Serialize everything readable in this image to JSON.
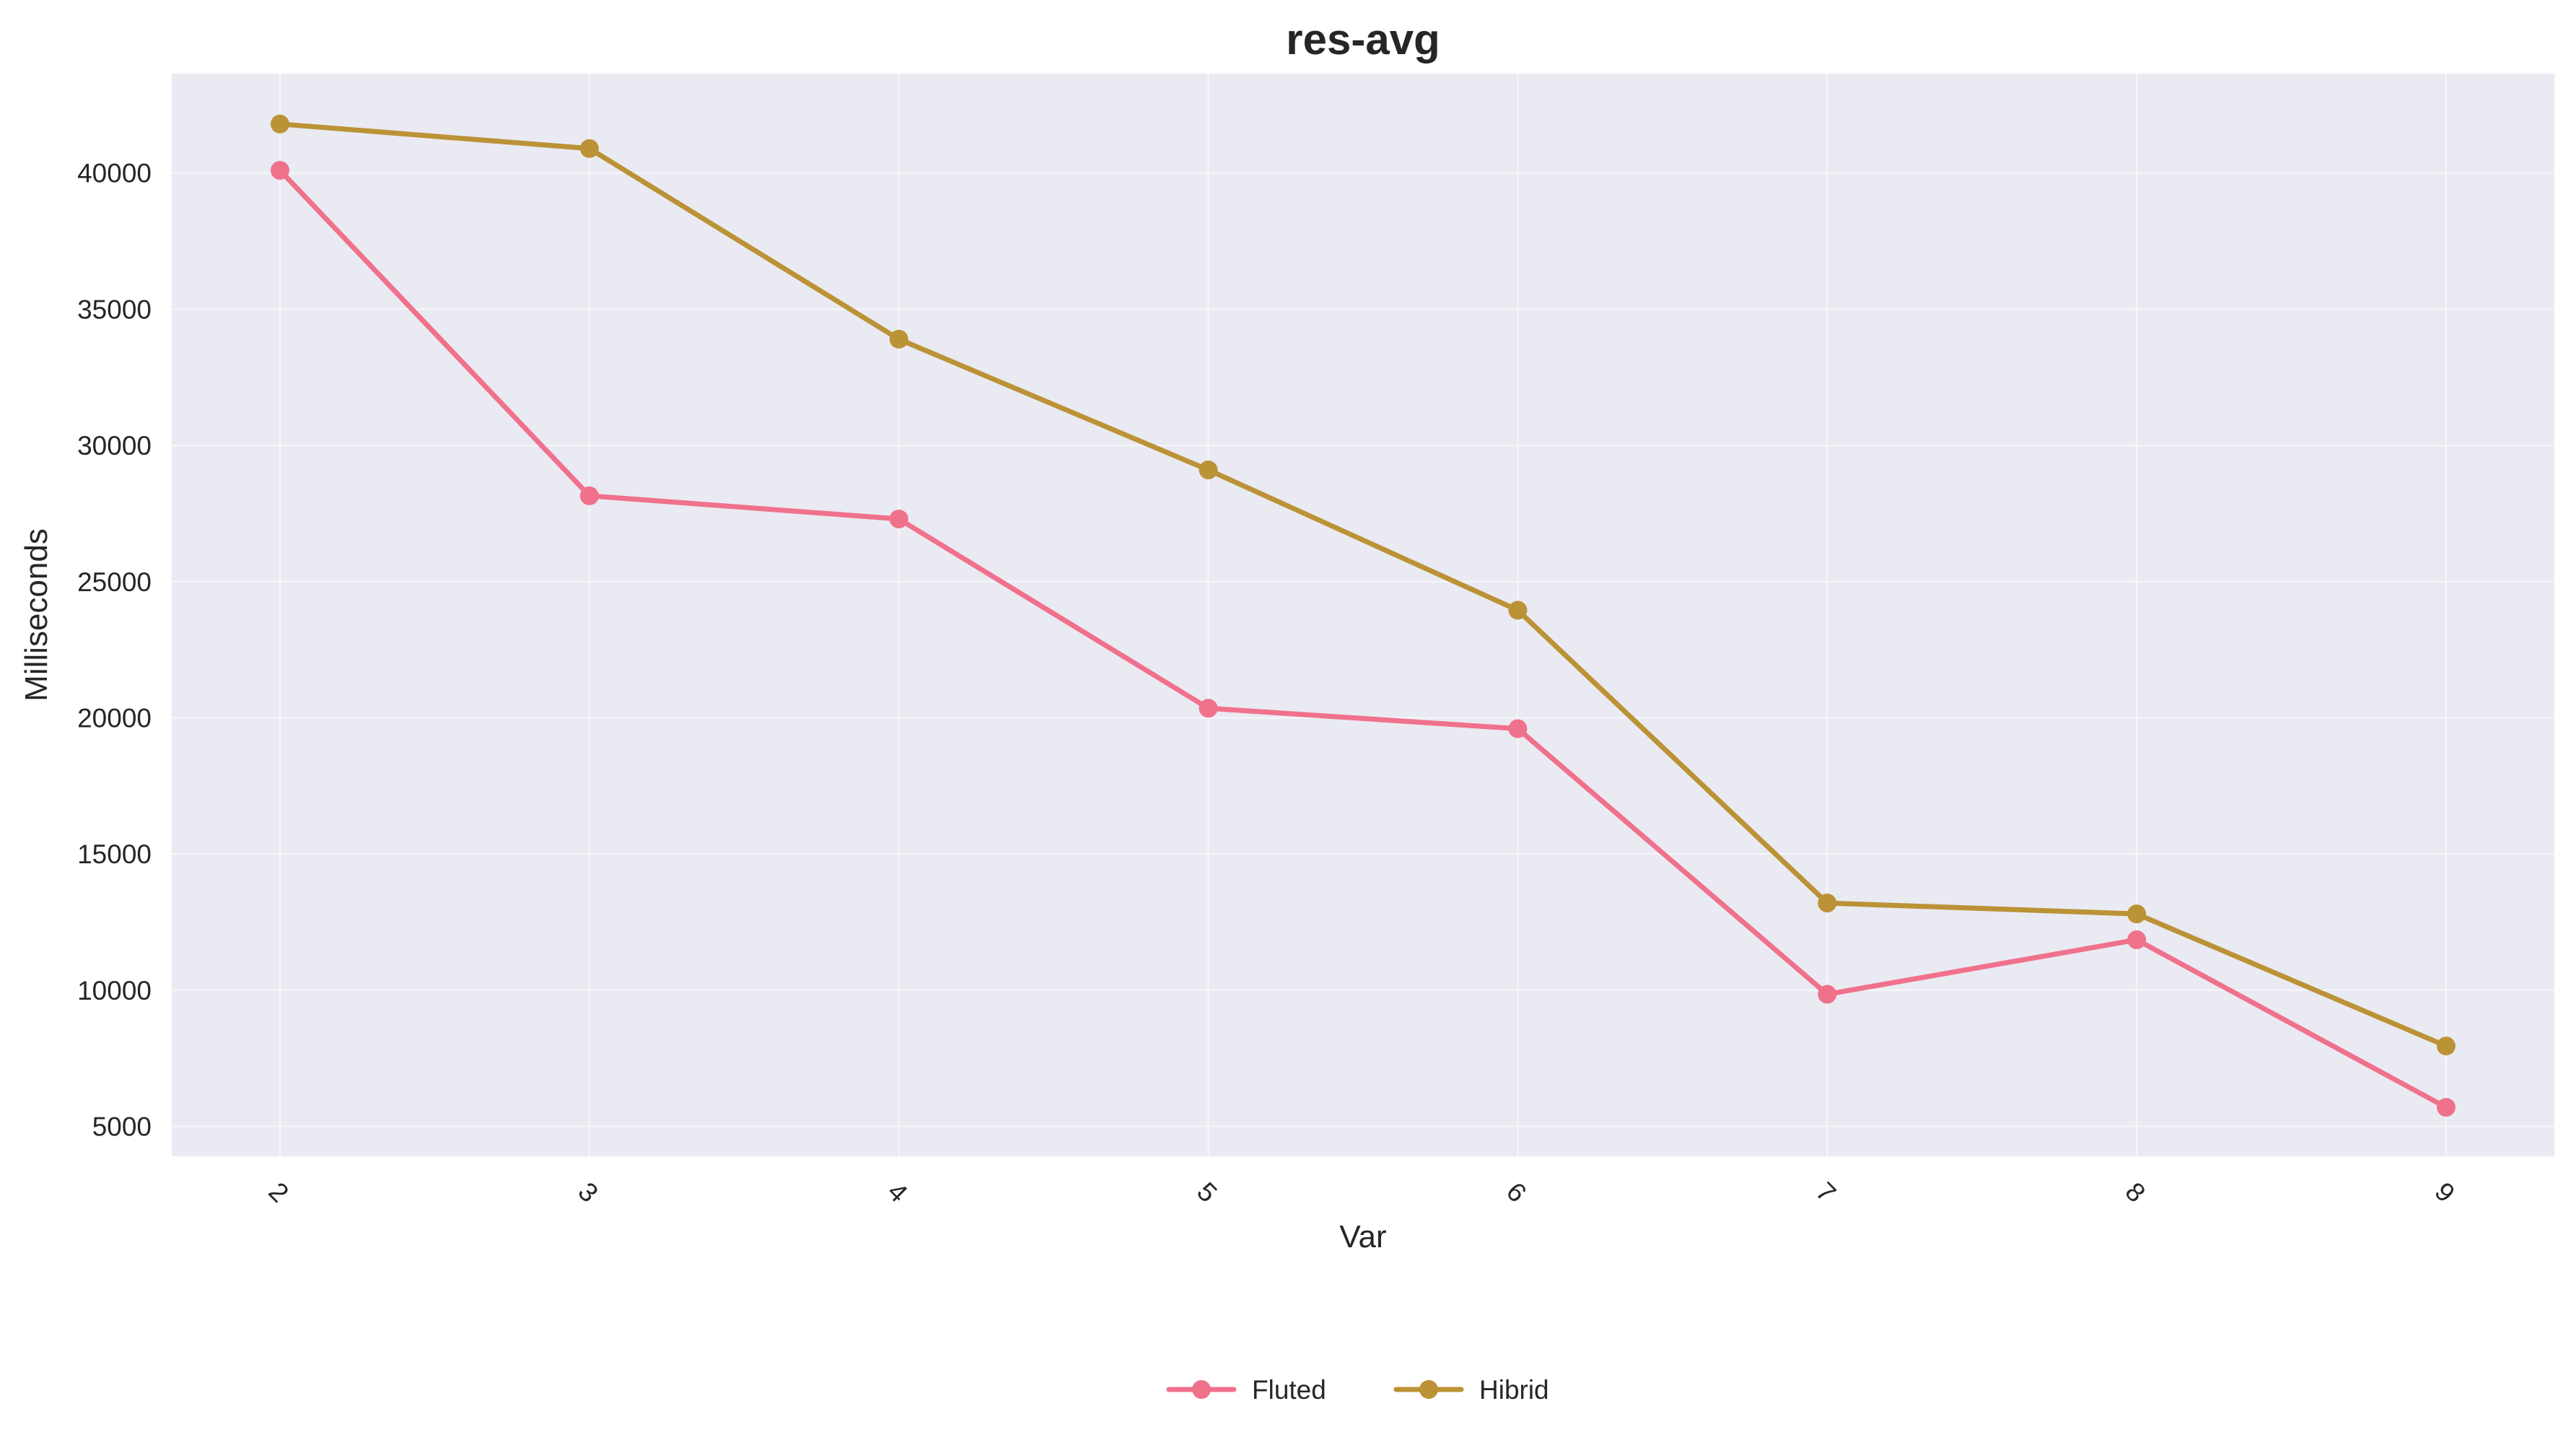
{
  "chart_data": {
    "type": "line",
    "title": "res-avg",
    "xlabel": "Var",
    "ylabel": "Milliseconds",
    "categories": [
      "2",
      "3",
      "4",
      "5",
      "6",
      "7",
      "8",
      "9"
    ],
    "ylim": [
      3900,
      43650
    ],
    "yticks": [
      5000,
      10000,
      15000,
      20000,
      25000,
      30000,
      35000,
      40000
    ],
    "grid": true,
    "legend_position": "bottom-center",
    "background_color": "#eaeaf2",
    "series": [
      {
        "name": "Fluted",
        "color": "#f0718c",
        "values": [
          40100,
          28150,
          27300,
          20350,
          19600,
          9850,
          11850,
          5700
        ]
      },
      {
        "name": "Hibrid",
        "color": "#bb9236",
        "values": [
          41800,
          40900,
          33900,
          29100,
          23950,
          13200,
          12800,
          7950
        ]
      }
    ]
  }
}
